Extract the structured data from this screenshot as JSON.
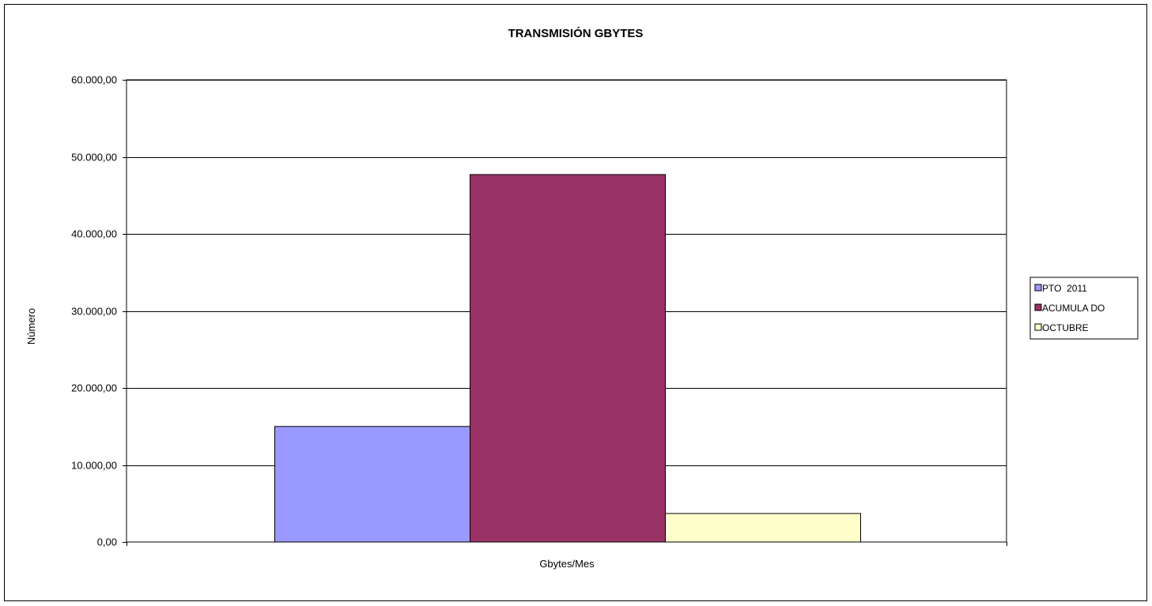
{
  "chart_data": {
    "type": "bar",
    "title": "TRANSMISIÓN GBYTES",
    "xlabel": "Gbytes/Mes",
    "ylabel": "Número",
    "categories": [
      "Gbytes/Mes"
    ],
    "series": [
      {
        "name": "PTO  2011",
        "values": [
          15000
        ],
        "color": "#9999ff"
      },
      {
        "name": "ACUMULA DO",
        "values": [
          47700
        ],
        "color": "#993366"
      },
      {
        "name": "OCTUBRE",
        "values": [
          3700
        ],
        "color": "#ffffcc"
      }
    ],
    "ylim": [
      0,
      60000
    ],
    "yticks": [
      0,
      10000,
      20000,
      30000,
      40000,
      50000,
      60000
    ],
    "ytick_labels": [
      "0,00",
      "10.000,00",
      "20.000,00",
      "30.000,00",
      "40.000,00",
      "50.000,00",
      "60.000,00"
    ],
    "grid": true,
    "legend_position": "right"
  }
}
